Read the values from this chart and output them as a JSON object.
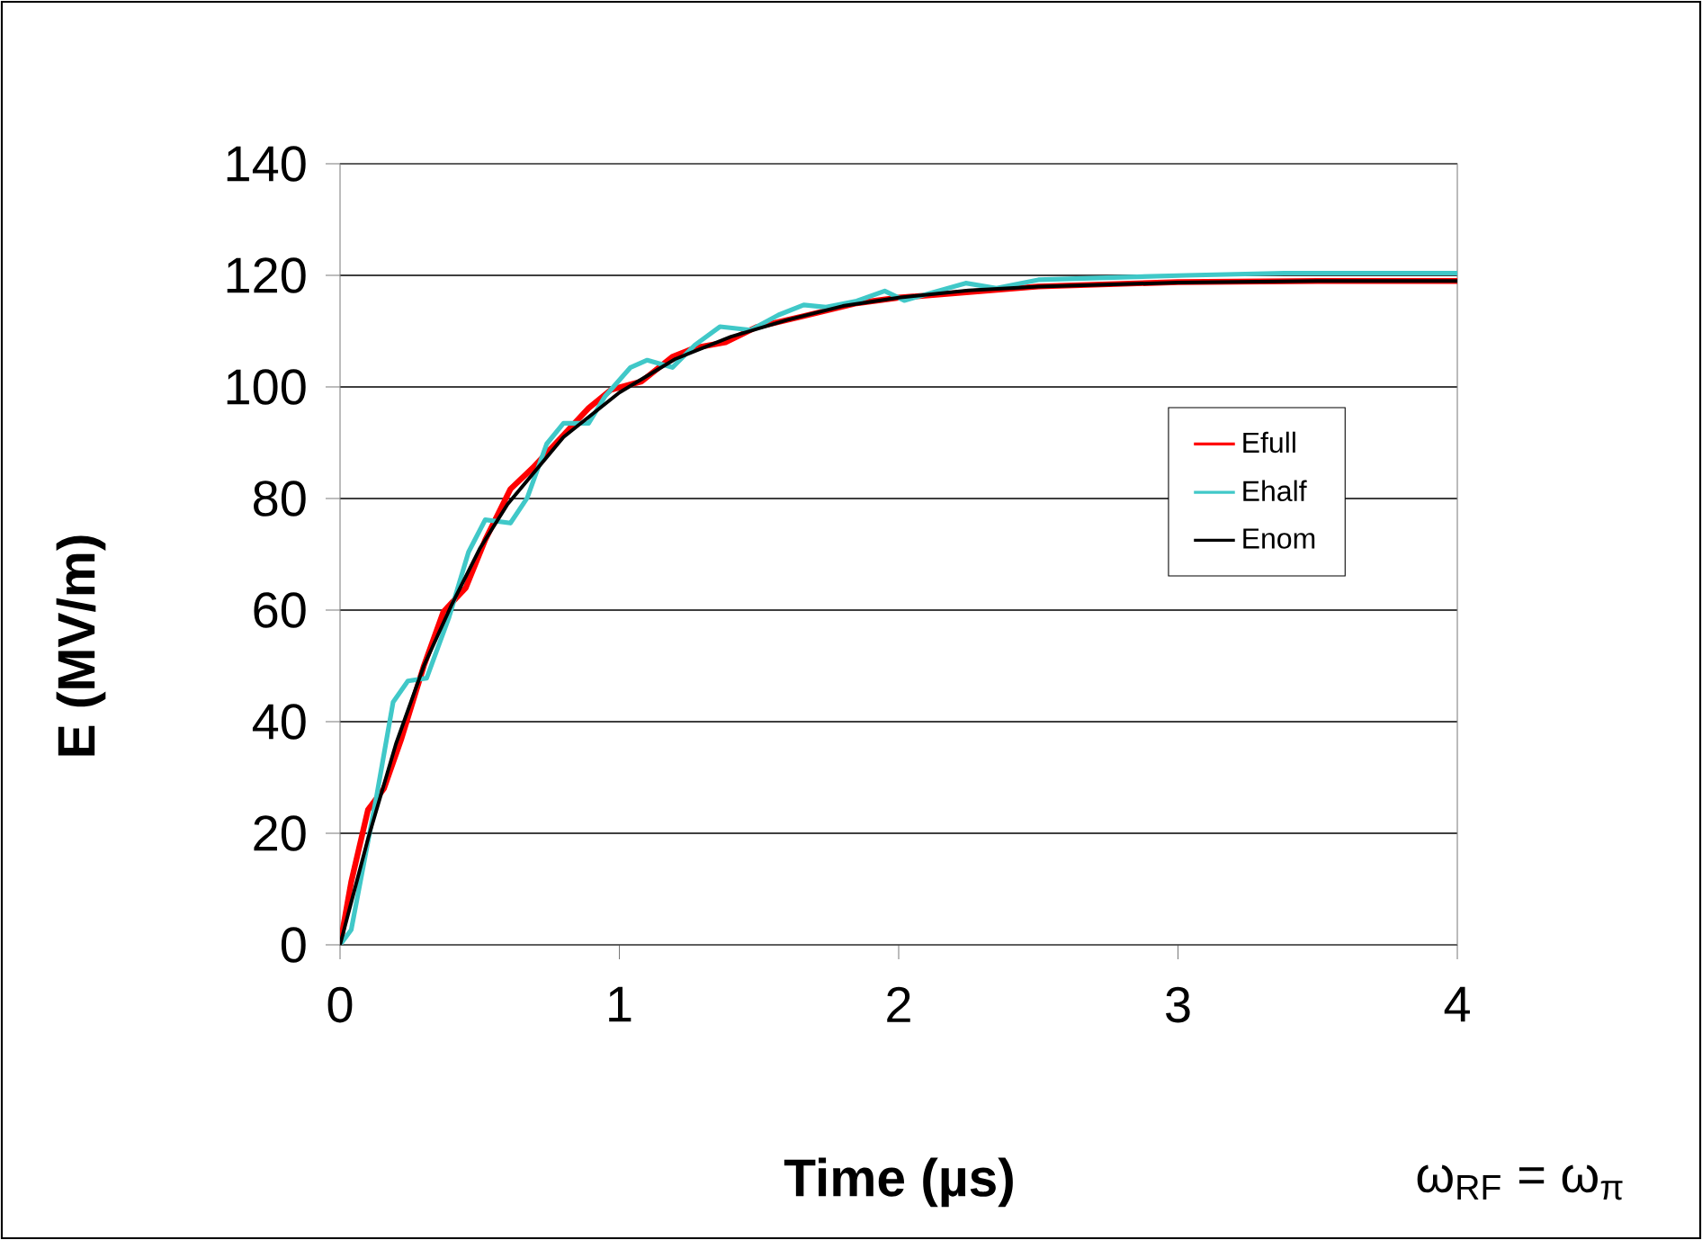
{
  "chart_data": {
    "type": "line",
    "xlabel": "Time (µs)",
    "ylabel": "E (MV/m)",
    "annotations": [
      "ω$_{RF}$ = ω$_{π}$"
    ],
    "xlim": [
      0,
      4
    ],
    "ylim": [
      0,
      140
    ],
    "xticks": [
      0,
      1,
      2,
      3,
      4
    ],
    "yticks": [
      0,
      20,
      40,
      60,
      80,
      100,
      120,
      140
    ],
    "grid": "y",
    "legend": "right",
    "line_style": "solid",
    "marker": "none",
    "series": [
      {
        "name": "Efull",
        "color": "#ff0000",
        "x": [
          0,
          0.04,
          0.1,
          0.157,
          0.22,
          0.3,
          0.37,
          0.45,
          0.52,
          0.61,
          0.69,
          0.78,
          0.89,
          0.97,
          1.08,
          1.19,
          1.27,
          1.38,
          1.49,
          1.66,
          1.85,
          2.0,
          2.5,
          3.0,
          3.5,
          4.0
        ],
        "values": [
          0,
          11.3,
          24.2,
          28,
          37,
          50,
          59.7,
          64,
          72.6,
          81.7,
          85.5,
          90.3,
          96.2,
          99.5,
          101,
          105.4,
          107,
          108,
          110.7,
          112.7,
          115,
          116,
          118,
          118.8,
          119,
          119
        ]
      },
      {
        "name": "Ehalf",
        "color": "#40c8c8",
        "x": [
          0,
          0.04,
          0.13,
          0.19,
          0.243,
          0.31,
          0.39,
          0.46,
          0.52,
          0.61,
          0.67,
          0.74,
          0.8,
          0.89,
          0.95,
          1.04,
          1.1,
          1.19,
          1.27,
          1.36,
          1.47,
          1.57,
          1.66,
          1.74,
          1.85,
          1.95,
          2.02,
          2.24,
          2.35,
          2.5,
          3.03,
          3.38,
          3.63,
          4.0
        ],
        "values": [
          0,
          2.7,
          26.4,
          43.5,
          47.3,
          47.8,
          58.7,
          70.4,
          76.2,
          75.6,
          80.1,
          89.8,
          93.5,
          93.5,
          98.4,
          103.5,
          104.8,
          103.5,
          107.5,
          110.8,
          110.2,
          112.9,
          114.7,
          114.3,
          115.4,
          117.2,
          115.5,
          118.6,
          117.7,
          119.2,
          120,
          120.4,
          120.4,
          120.4
        ]
      },
      {
        "name": "Enom",
        "color": "#000000",
        "x": [
          0,
          0.1,
          0.2,
          0.3,
          0.4,
          0.5,
          0.6,
          0.7,
          0.8,
          0.9,
          1.0,
          1.2,
          1.4,
          1.6,
          1.8,
          2.0,
          2.25,
          2.5,
          3.0,
          3.5,
          4.0
        ],
        "values": [
          0,
          19,
          36,
          50,
          61,
          71,
          79,
          85,
          91,
          95,
          99,
          105,
          109,
          112,
          114.5,
          116,
          117.3,
          118,
          118.7,
          119,
          119
        ]
      }
    ]
  }
}
